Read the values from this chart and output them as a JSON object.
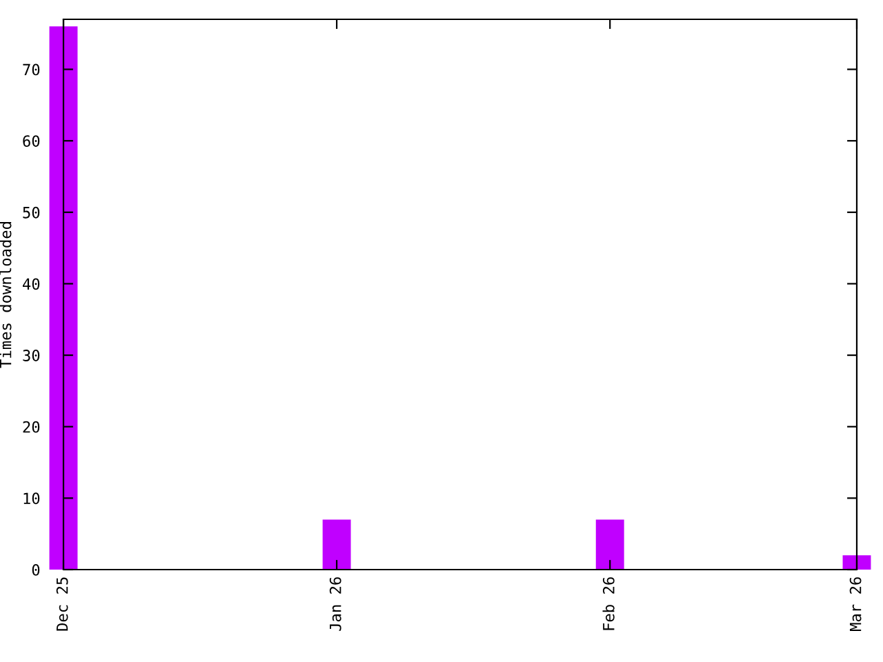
{
  "chart_data": {
    "type": "bar",
    "ylabel": "Times downloaded",
    "x": [
      "2025-12-01",
      "2026-01-01",
      "2026-02-01",
      "2026-03-01"
    ],
    "values": [
      76,
      7,
      7,
      2
    ],
    "color": "#c000ff",
    "xlim": [
      "2025-12-01",
      "2026-03-01"
    ],
    "xticks": [
      {
        "value": "2025-12-01",
        "label": "Dec 25"
      },
      {
        "value": "2026-01-01",
        "label": "Jan 26"
      },
      {
        "value": "2026-02-01",
        "label": "Feb 26"
      },
      {
        "value": "2026-03-01",
        "label": "Mar 26"
      }
    ],
    "ylim": [
      0,
      77
    ],
    "yticks": [
      0,
      10,
      20,
      30,
      40,
      50,
      60,
      70
    ],
    "grid": false,
    "legend": false
  }
}
